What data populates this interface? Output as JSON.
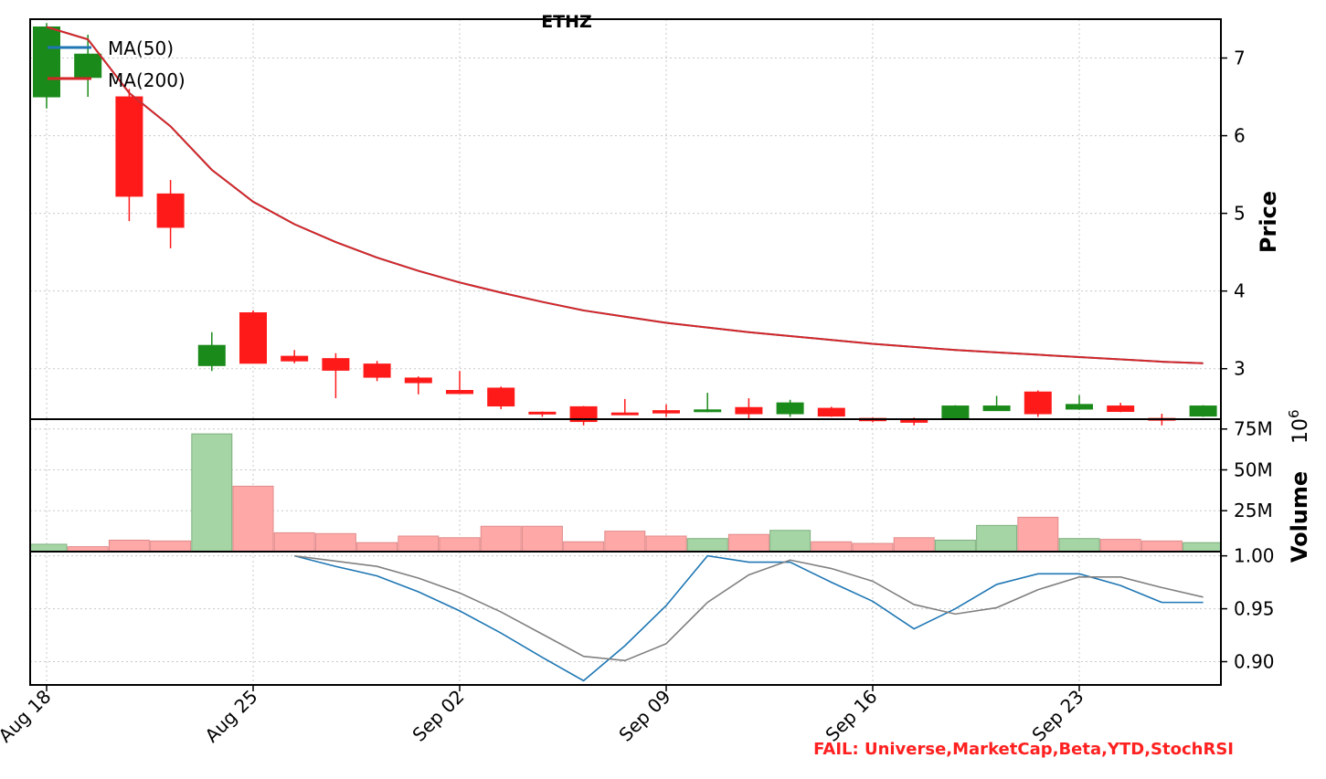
{
  "title": "ETHZ",
  "fail_text": "FAIL: Universe,MarketCap,Beta,YTD,StochRSI",
  "colors": {
    "up": "#1a8a1a",
    "down": "#ff1a1a",
    "ma50": "#1f77b4",
    "ma200": "#d62728",
    "vol_up": "#a5d4a5",
    "vol_down": "#ffa8a8",
    "osc_a": "#1f77b4",
    "osc_b": "#808080",
    "fail": "#ff2020"
  },
  "chart_data": [
    {
      "type": "candlestick",
      "title": "ETHZ",
      "ylabel": "Price",
      "ylim": [
        2.35,
        7.5
      ],
      "yticks": [
        3,
        4,
        5,
        6,
        7
      ],
      "xlabels": [
        "Aug 18",
        "Aug 25",
        "Sep 02",
        "Sep 09",
        "Sep 16",
        "Sep 23"
      ],
      "xlabel_index": [
        0,
        5,
        10,
        15,
        20,
        25
      ],
      "grid": true,
      "legend_position": "top-left",
      "legend": [
        "MA(50)",
        "MA(200)"
      ],
      "candles": [
        {
          "o": 6.5,
          "h": 7.45,
          "l": 6.35,
          "c": 7.4
        },
        {
          "o": 6.75,
          "h": 7.3,
          "l": 6.5,
          "c": 7.05
        },
        {
          "o": 6.5,
          "h": 6.6,
          "l": 4.9,
          "c": 5.22
        },
        {
          "o": 5.25,
          "h": 5.43,
          "l": 4.55,
          "c": 4.82
        },
        {
          "o": 3.04,
          "h": 3.47,
          "l": 2.97,
          "c": 3.3
        },
        {
          "o": 3.72,
          "h": 3.75,
          "l": 3.07,
          "c": 3.07
        },
        {
          "o": 3.16,
          "h": 3.24,
          "l": 3.07,
          "c": 3.1
        },
        {
          "o": 3.13,
          "h": 3.2,
          "l": 2.62,
          "c": 2.98
        },
        {
          "o": 3.06,
          "h": 3.1,
          "l": 2.84,
          "c": 2.89
        },
        {
          "o": 2.88,
          "h": 2.9,
          "l": 2.67,
          "c": 2.82
        },
        {
          "o": 2.72,
          "h": 2.97,
          "l": 2.68,
          "c": 2.68
        },
        {
          "o": 2.75,
          "h": 2.77,
          "l": 2.48,
          "c": 2.52
        },
        {
          "o": 2.44,
          "h": 2.45,
          "l": 2.38,
          "c": 2.43
        },
        {
          "o": 2.51,
          "h": 2.52,
          "l": 2.27,
          "c": 2.32
        },
        {
          "o": 2.43,
          "h": 2.61,
          "l": 2.41,
          "c": 2.42
        },
        {
          "o": 2.46,
          "h": 2.54,
          "l": 2.38,
          "c": 2.43
        },
        {
          "o": 2.46,
          "h": 2.69,
          "l": 2.44,
          "c": 2.47
        },
        {
          "o": 2.5,
          "h": 2.62,
          "l": 2.34,
          "c": 2.42
        },
        {
          "o": 2.42,
          "h": 2.6,
          "l": 2.38,
          "c": 2.56
        },
        {
          "o": 2.49,
          "h": 2.51,
          "l": 2.38,
          "c": 2.39
        },
        {
          "o": 2.36,
          "h": 2.37,
          "l": 2.31,
          "c": 2.33
        },
        {
          "o": 2.34,
          "h": 2.37,
          "l": 2.27,
          "c": 2.31
        },
        {
          "o": 2.36,
          "h": 2.53,
          "l": 2.36,
          "c": 2.52
        },
        {
          "o": 2.46,
          "h": 2.65,
          "l": 2.46,
          "c": 2.52
        },
        {
          "o": 2.7,
          "h": 2.72,
          "l": 2.38,
          "c": 2.42
        },
        {
          "o": 2.48,
          "h": 2.66,
          "l": 2.47,
          "c": 2.54
        },
        {
          "o": 2.52,
          "h": 2.56,
          "l": 2.44,
          "c": 2.45
        },
        {
          "o": 2.36,
          "h": 2.42,
          "l": 2.27,
          "c": 2.34
        },
        {
          "o": 2.39,
          "h": 2.53,
          "l": 2.38,
          "c": 2.52
        }
      ],
      "series": [
        {
          "name": "MA(50)",
          "values": [
            7.4,
            7.24,
            6.55,
            6.12,
            5.56,
            5.15,
            4.86,
            4.63,
            4.43,
            4.26,
            4.11,
            3.98,
            3.86,
            3.75,
            3.67,
            3.59,
            3.53,
            3.47,
            3.42,
            3.37,
            3.32,
            3.28,
            3.24,
            3.21,
            3.18,
            3.15,
            3.12,
            3.09,
            3.07
          ]
        },
        {
          "name": "MA(200)",
          "values": [
            7.4,
            7.24,
            6.55,
            6.12,
            5.56,
            5.15,
            4.86,
            4.63,
            4.43,
            4.26,
            4.11,
            3.98,
            3.86,
            3.75,
            3.67,
            3.59,
            3.53,
            3.47,
            3.42,
            3.37,
            3.32,
            3.28,
            3.24,
            3.21,
            3.18,
            3.15,
            3.12,
            3.09,
            3.07
          ]
        }
      ]
    },
    {
      "type": "bar",
      "ylabel": "Volume",
      "ylabel_exponent": "10^6",
      "ylim": [
        0,
        81
      ],
      "yticks": [
        25,
        50,
        75
      ],
      "ytick_labels": [
        "25M",
        "50M",
        "75M"
      ],
      "values": [
        4.5,
        3,
        7,
        6.5,
        72,
        40,
        11.5,
        11,
        5.5,
        9.5,
        8.5,
        15.5,
        15.5,
        6,
        12.5,
        9.5,
        8,
        10.5,
        13,
        6,
        5,
        8.5,
        7,
        16,
        21,
        8,
        7.5,
        6.5,
        5.5
      ],
      "directions": [
        "up",
        "down",
        "down",
        "down",
        "up",
        "down",
        "down",
        "down",
        "down",
        "down",
        "down",
        "down",
        "down",
        "down",
        "down",
        "down",
        "up",
        "down",
        "up",
        "down",
        "down",
        "down",
        "up",
        "up",
        "down",
        "up",
        "down",
        "down",
        "up"
      ]
    },
    {
      "type": "line",
      "ylim": [
        0.878,
        1.004
      ],
      "yticks": [
        0.9,
        0.95,
        1.0
      ],
      "ytick_labels": [
        "0.90",
        "0.95",
        "1.00"
      ],
      "series": [
        {
          "values": [
            null,
            null,
            null,
            null,
            null,
            null,
            1.0,
            0.99,
            0.981,
            0.966,
            0.948,
            0.927,
            0.904,
            0.882,
            0.915,
            0.953,
            1.0,
            0.994,
            0.994,
            0.975,
            0.957,
            0.931,
            0.95,
            0.973,
            0.983,
            0.983,
            0.972,
            0.956,
            0.956
          ]
        },
        {
          "values": [
            null,
            null,
            null,
            null,
            null,
            null,
            1.0,
            0.995,
            0.99,
            0.979,
            0.965,
            0.947,
            0.926,
            0.905,
            0.901,
            0.917,
            0.956,
            0.982,
            0.996,
            0.988,
            0.976,
            0.954,
            0.945,
            0.951,
            0.968,
            0.98,
            0.98,
            0.97,
            0.961
          ]
        }
      ]
    }
  ]
}
